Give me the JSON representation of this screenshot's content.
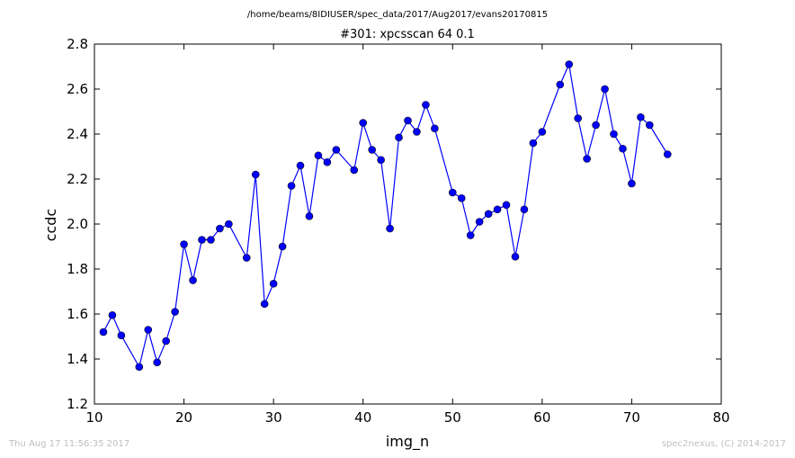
{
  "chart_data": {
    "type": "line",
    "suptitle": "/home/beams/8IDIUSER/spec_data/2017/Aug2017/evans20170815",
    "title": "#301: xpcsscan 64 0.1",
    "xlabel": "img_n",
    "ylabel": "ccdc",
    "xlim": [
      10,
      80
    ],
    "ylim": [
      1.2,
      2.8
    ],
    "xticks": [
      "10",
      "20",
      "30",
      "40",
      "50",
      "60",
      "70",
      "80"
    ],
    "yticks": [
      "1.2",
      "1.4",
      "1.6",
      "1.8",
      "2.0",
      "2.2",
      "2.4",
      "2.6",
      "2.8"
    ],
    "grid": false,
    "marker": "circle",
    "color": "#0000ff",
    "series": [
      {
        "x": [
          11,
          12,
          13,
          15,
          16,
          17,
          18,
          19,
          20,
          21,
          22,
          23,
          24,
          25,
          27,
          28,
          29,
          30,
          31,
          32,
          33,
          34,
          35,
          36,
          37,
          39,
          40,
          41,
          42,
          43,
          44,
          45,
          46,
          47,
          48,
          50,
          51,
          52,
          53,
          54,
          55,
          56,
          57,
          58,
          59,
          60,
          62,
          63,
          64,
          65,
          66,
          67,
          68,
          69,
          70,
          71,
          72,
          74
        ],
        "y": [
          1.52,
          1.595,
          1.505,
          1.365,
          1.53,
          1.385,
          1.48,
          1.61,
          1.91,
          1.75,
          1.93,
          1.93,
          1.98,
          2.0,
          1.85,
          2.22,
          1.645,
          1.735,
          1.9,
          2.17,
          2.26,
          2.035,
          2.305,
          2.275,
          2.33,
          2.24,
          2.45,
          2.33,
          2.285,
          1.98,
          2.385,
          2.46,
          2.41,
          2.53,
          2.425,
          2.14,
          2.115,
          1.95,
          2.01,
          2.045,
          2.065,
          2.085,
          1.855,
          2.065,
          2.36,
          2.41,
          2.62,
          2.71,
          2.47,
          2.29,
          2.44,
          2.6,
          2.4,
          2.335,
          2.18,
          2.475,
          2.44,
          2.31
        ]
      }
    ]
  },
  "footer": {
    "left": "Thu Aug 17 11:56:35 2017",
    "right": "spec2nexus, (C) 2014-2017"
  }
}
